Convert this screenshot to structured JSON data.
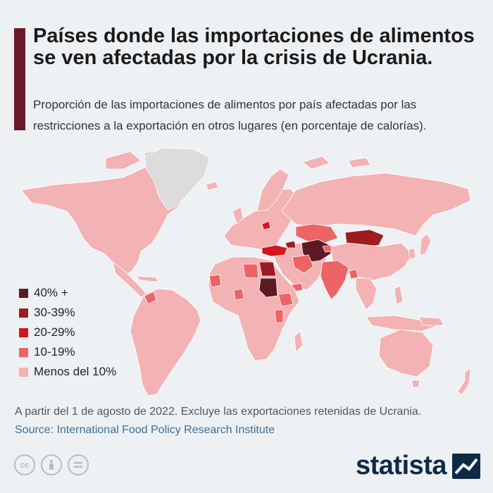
{
  "header": {
    "title": "Países donde las importaciones de alimentos se ven afectadas por la crisis de Ucrania.",
    "subtitle": "Proporción de las importaciones de alimentos por país afectadas por las restricciones a la exportación en otros lugares (en porcentaje de calorías)."
  },
  "colors": {
    "accent": "#6b1a27",
    "ocean": "#eef1f4",
    "no_data": "#dcdcdc",
    "cat_40_plus": "#5c1a24",
    "cat_30_39": "#9e1b22",
    "cat_20_29": "#d3161d",
    "cat_10_19": "#ec6466",
    "cat_lt_10": "#f3b2b3"
  },
  "legend": [
    {
      "label": "40% +",
      "color": "#5c1a24"
    },
    {
      "label": "30-39%",
      "color": "#9e1b22"
    },
    {
      "label": "20-29%",
      "color": "#d3161d"
    },
    {
      "label": "10-19%",
      "color": "#ec6466"
    },
    {
      "label": "Menos del 10%",
      "color": "#f3b2b3"
    }
  ],
  "footer": {
    "note": "A partir del 1 de agosto de 2022. Excluye las exportaciones retenidas de Ucrania.",
    "source": "Source: International Food Policy Research Institute",
    "license_icons": [
      "cc-icon",
      "attribution-icon",
      "no-derivatives-icon"
    ],
    "brand": "statista"
  }
}
